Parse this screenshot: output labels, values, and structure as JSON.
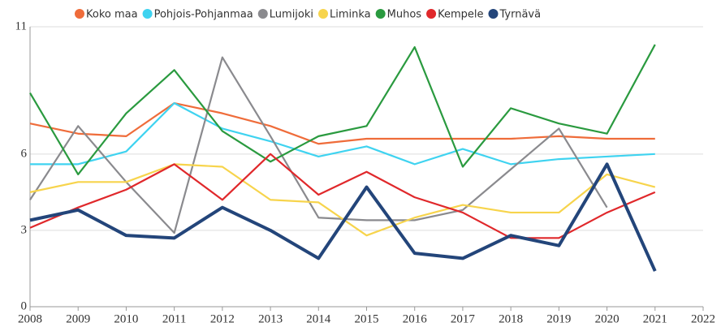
{
  "chart_data": {
    "type": "line",
    "x": [
      2008,
      2009,
      2010,
      2011,
      2012,
      2013,
      2014,
      2015,
      2016,
      2017,
      2018,
      2019,
      2020,
      2021
    ],
    "xlim": [
      2008,
      2022
    ],
    "xticks": [
      2008,
      2009,
      2010,
      2011,
      2012,
      2013,
      2014,
      2015,
      2016,
      2017,
      2018,
      2019,
      2020,
      2021,
      2022
    ],
    "ylim": [
      0,
      11
    ],
    "yticks": [
      0,
      3,
      6,
      11
    ],
    "grid": true,
    "legend": "top",
    "series": [
      {
        "name": "Koko maa",
        "color": "#ef6c3a",
        "values": [
          7.2,
          6.8,
          6.7,
          8.0,
          7.6,
          7.1,
          6.4,
          6.6,
          6.6,
          6.6,
          6.6,
          6.7,
          6.6,
          6.6
        ]
      },
      {
        "name": "Pohjois-Pohjanmaa",
        "color": "#3fd3f0",
        "values": [
          5.6,
          5.6,
          6.1,
          8.0,
          7.0,
          6.5,
          5.9,
          6.3,
          5.6,
          6.2,
          5.6,
          5.8,
          5.9,
          6.0
        ]
      },
      {
        "name": "Lumijoki",
        "color": "#8a8a8e",
        "values": [
          4.2,
          7.1,
          4.9,
          2.9,
          9.8,
          6.7,
          3.5,
          3.4,
          3.4,
          3.8,
          5.4,
          7.0,
          3.9,
          null
        ]
      },
      {
        "name": "Liminka",
        "color": "#f7d44c",
        "values": [
          4.5,
          4.9,
          4.9,
          5.6,
          5.5,
          4.2,
          4.1,
          2.8,
          3.5,
          4.0,
          3.7,
          3.7,
          5.2,
          4.7
        ]
      },
      {
        "name": "Muhos",
        "color": "#2a9a3f",
        "values": [
          8.4,
          5.2,
          7.6,
          9.3,
          6.9,
          5.7,
          6.7,
          7.1,
          10.2,
          5.5,
          7.8,
          7.2,
          6.8,
          10.3
        ]
      },
      {
        "name": "Kempele",
        "color": "#e0282b",
        "values": [
          3.1,
          3.9,
          4.6,
          5.6,
          4.2,
          6.0,
          4.4,
          5.3,
          4.3,
          3.7,
          2.7,
          2.7,
          3.7,
          4.5
        ]
      },
      {
        "name": "Tyrnävä",
        "color": "#23457a",
        "values": [
          3.4,
          3.8,
          2.8,
          2.7,
          3.9,
          3.0,
          1.9,
          4.7,
          2.1,
          1.9,
          2.8,
          2.4,
          5.6,
          1.4
        ]
      }
    ]
  }
}
